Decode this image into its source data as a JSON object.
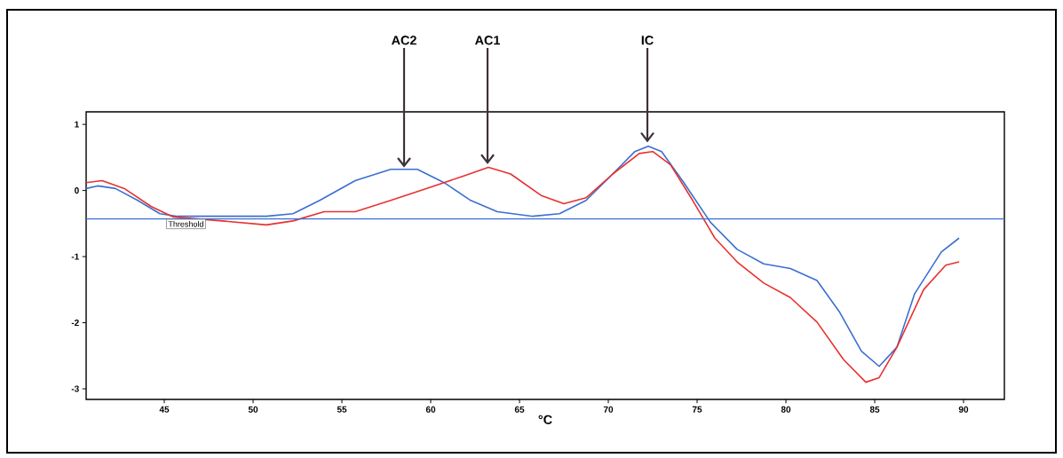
{
  "chart_data": {
    "type": "line",
    "xlabel": "°C",
    "xlim": [
      40.6,
      92.3
    ],
    "ylim": [
      -3.16,
      1.19
    ],
    "xticks": [
      45,
      50,
      55,
      60,
      65,
      70,
      75,
      80,
      85,
      90
    ],
    "yticks": [
      -3,
      -2,
      -1,
      0,
      1
    ],
    "grid": false,
    "legend": false,
    "marker": "none",
    "line_style": "solid",
    "ref_lines": [
      {
        "axis": "y",
        "value": -0.43,
        "label": "Threshold",
        "color": "#3a6fd8"
      }
    ],
    "annotations": [
      {
        "text": "AC2",
        "x": 58.5,
        "y": 0.32
      },
      {
        "text": "AC1",
        "x": 63.2,
        "y": 0.37
      },
      {
        "text": "IC",
        "x": 72.2,
        "y": 0.7
      }
    ],
    "series": [
      {
        "color": "#3b6fd0",
        "x": [
          40.6,
          41.25,
          42.25,
          43.5,
          44.75,
          45.75,
          48.25,
          50.75,
          52.25,
          53.75,
          55.75,
          57.75,
          59.25,
          60.75,
          62.25,
          63.75,
          65.75,
          67.25,
          68.75,
          70.25,
          71.5,
          72.25,
          73,
          74.25,
          75.75,
          77.25,
          78.75,
          80.25,
          81.75,
          83,
          84.25,
          85.25,
          86.25,
          87.25,
          88.75,
          89.75
        ],
        "values": [
          0.03,
          0.07,
          0.03,
          -0.15,
          -0.35,
          -0.39,
          -0.39,
          -0.39,
          -0.35,
          -0.15,
          0.15,
          0.32,
          0.32,
          0.12,
          -0.15,
          -0.32,
          -0.39,
          -0.35,
          -0.15,
          0.25,
          0.59,
          0.67,
          0.59,
          0.12,
          -0.48,
          -0.89,
          -1.11,
          -1.18,
          -1.36,
          -1.83,
          -2.43,
          -2.66,
          -2.37,
          -1.56,
          -0.93,
          -0.72
        ]
      },
      {
        "color": "#e8312f",
        "x": [
          40.6,
          41.5,
          42.75,
          44.25,
          45.5,
          48.25,
          50.75,
          52.25,
          54,
          55.75,
          57.75,
          59.75,
          61.75,
          63.25,
          64.5,
          66.25,
          67.5,
          68.75,
          70.25,
          71.75,
          72.5,
          73.5,
          74.75,
          76,
          77.25,
          78.75,
          80.25,
          81.75,
          83.25,
          84.5,
          85.25,
          86.25,
          87.75,
          89,
          89.75
        ],
        "values": [
          0.12,
          0.15,
          0.03,
          -0.24,
          -0.4,
          -0.46,
          -0.52,
          -0.46,
          -0.32,
          -0.32,
          -0.15,
          0.03,
          0.21,
          0.35,
          0.25,
          -0.08,
          -0.2,
          -0.11,
          0.25,
          0.56,
          0.59,
          0.39,
          -0.15,
          -0.72,
          -1.08,
          -1.4,
          -1.62,
          -1.99,
          -2.56,
          -2.9,
          -2.83,
          -2.37,
          -1.5,
          -1.13,
          -1.08
        ]
      }
    ]
  }
}
